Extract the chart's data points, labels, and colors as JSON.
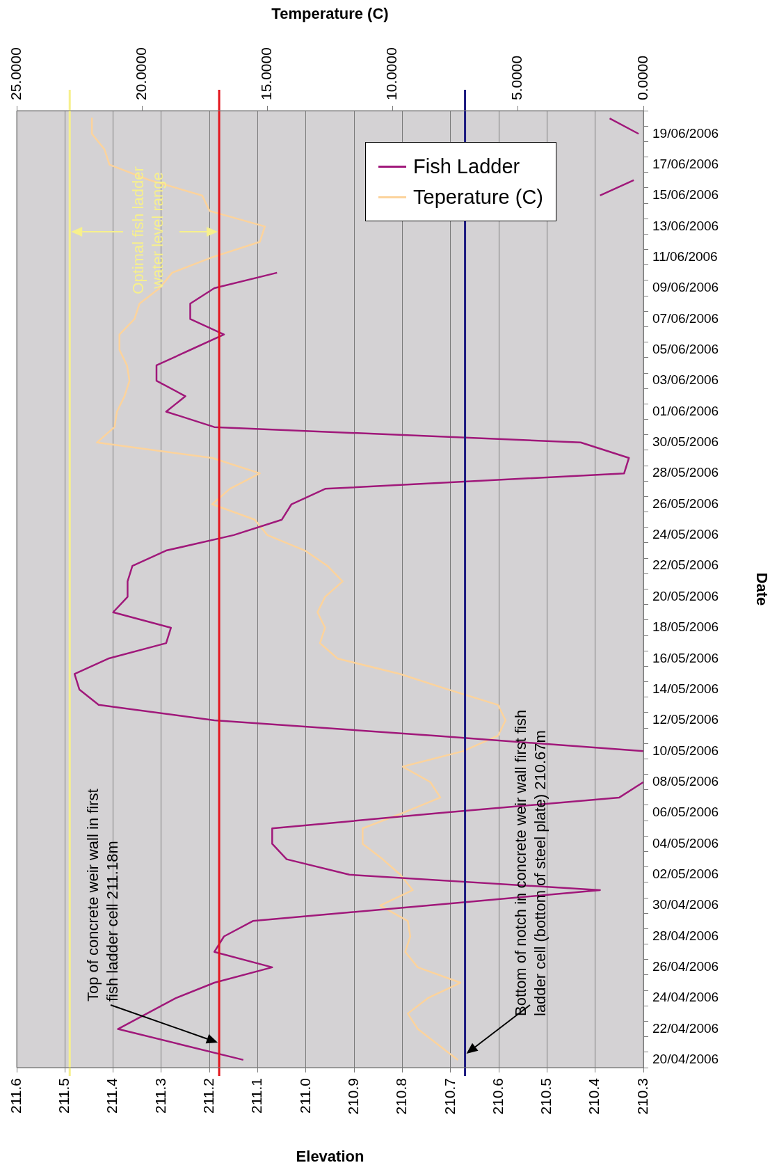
{
  "chart_data": {
    "type": "line",
    "orientation": "horizontal",
    "xlabel": "Elevation",
    "x2label": "Temperature (C)",
    "ylabel": "Date",
    "categories": [
      null,
      "19/06/2006",
      null,
      "17/06/2006",
      null,
      "15/06/2006",
      null,
      "13/06/2006",
      null,
      "11/06/2006",
      null,
      "09/06/2006",
      null,
      "07/06/2006",
      null,
      "05/06/2006",
      null,
      "03/06/2006",
      null,
      "01/06/2006",
      null,
      "30/05/2006",
      null,
      "28/05/2006",
      null,
      "26/05/2006",
      null,
      "24/05/2006",
      null,
      "22/05/2006",
      null,
      "20/05/2006",
      null,
      "18/05/2006",
      null,
      "16/05/2006",
      null,
      "14/05/2006",
      null,
      "12/05/2006",
      null,
      "10/05/2006",
      null,
      "08/05/2006",
      null,
      "06/05/2006",
      null,
      "04/05/2006",
      null,
      "02/05/2006",
      null,
      "30/04/2006",
      null,
      "28/04/2006",
      null,
      "26/04/2006",
      null,
      "24/04/2006",
      null,
      "22/04/2006",
      null,
      "20/04/2006"
    ],
    "series": [
      {
        "name": "Fish Ladder",
        "color": "#a0187a",
        "values": [
          210.37,
          210.31,
          null,
          null,
          210.32,
          210.39,
          null,
          null,
          null,
          null,
          211.06,
          211.19,
          211.24,
          211.24,
          211.17,
          211.24,
          211.31,
          211.31,
          211.25,
          211.29,
          211.19,
          210.43,
          210.33,
          210.34,
          210.96,
          211.03,
          211.05,
          211.15,
          211.29,
          211.36,
          211.37,
          211.37,
          211.4,
          211.28,
          211.29,
          211.41,
          211.48,
          211.47,
          211.43,
          211.19,
          210.73,
          210.3,
          null,
          210.3,
          210.35,
          210.72,
          211.07,
          211.07,
          211.04,
          210.91,
          210.39,
          210.75,
          211.11,
          211.17,
          211.19,
          211.07,
          211.19,
          211.27,
          211.33,
          211.39,
          211.26,
          211.13
        ]
      },
      {
        "name": "Teperature (C)",
        "color": "#fcd39c",
        "axis": "x2",
        "values": [
          22.0,
          22.0,
          21.5,
          21.3,
          19.7,
          17.6,
          17.3,
          15.1,
          15.3,
          17.2,
          18.8,
          19.3,
          20.1,
          20.3,
          20.9,
          20.9,
          20.6,
          20.5,
          20.7,
          21.0,
          21.1,
          21.8,
          17.2,
          15.3,
          16.5,
          17.2,
          15.5,
          15.0,
          13.5,
          12.6,
          12.0,
          12.7,
          13.0,
          12.7,
          12.9,
          12.2,
          9.7,
          7.8,
          5.8,
          5.5,
          5.8,
          7.2,
          9.6,
          8.5,
          8.1,
          9.6,
          11.2,
          11.2,
          10.4,
          9.7,
          9.2,
          10.5,
          9.4,
          9.3,
          9.5,
          9.0,
          7.3,
          8.6,
          9.4,
          9.0,
          8.2,
          7.4
        ]
      }
    ],
    "xlim": [
      211.6,
      210.3
    ],
    "xticks": [
      211.6,
      211.5,
      211.4,
      211.3,
      211.2,
      211.1,
      {
        "value": 211,
        "label": "211.0"
      },
      210.9,
      210.8,
      210.7,
      210.6,
      210.5,
      210.4,
      210.3
    ],
    "x2lim": [
      25,
      0
    ],
    "x2ticks": [
      {
        "value": 25,
        "label": "25.0000"
      },
      {
        "value": 20,
        "label": "20.0000"
      },
      {
        "value": 15,
        "label": "15.0000"
      },
      {
        "value": 10,
        "label": "10.0000"
      },
      {
        "value": 5,
        "label": "5.0000"
      },
      {
        "value": 0,
        "label": "0.0000"
      }
    ],
    "ref_lines": [
      {
        "axis": "x",
        "value": 211.49,
        "color": "#f7f08c"
      },
      {
        "axis": "x",
        "value": 211.18,
        "color": "#e3141c"
      },
      {
        "axis": "x",
        "value": 210.67,
        "color": "#1c1a80"
      }
    ],
    "annotations": [
      "Top of concrete weir wall in first\nfish ladder cell 211.18m",
      "Bottom of notch in concrete weir wall first fish\nladder cell (bottom of steel plate) 210.67m",
      "Optimal fish ladder\nwater level range"
    ],
    "grid": "x",
    "legend": "top right",
    "marker": "none",
    "line_style": "solid"
  }
}
